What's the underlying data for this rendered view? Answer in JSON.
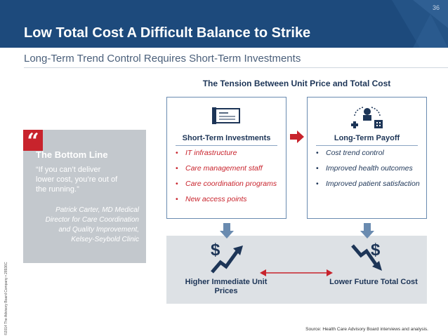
{
  "header": {
    "title": "Low Total Cost A Difficult Balance to Strike",
    "slide_number": "36"
  },
  "subtitle": "Long-Term Trend Control Requires Short-Term Investments",
  "side_copyright": "©2014 The Advisory Board Company • 28936C",
  "quote": {
    "mark": "“",
    "heading": "The Bottom Line",
    "text": "“If you can’t deliver lower cost, you’re out of the running.”",
    "attribution": "Patrick Carter, MD Medical Director for Care Coordination and Quality Improvement, Kelsey-Seybold Clinic"
  },
  "tension_title": "The Tension Between Unit Price and Total Cost",
  "short_term": {
    "heading": "Short-Term Investments",
    "icon": "check-icon",
    "items": [
      "IT infrastructure",
      "Care management staff",
      "Care coordination programs",
      "New access points"
    ]
  },
  "long_term": {
    "heading": "Long-Term Payoff",
    "icon": "care-network-icon",
    "items": [
      "Cost trend control",
      "Improved health outcomes",
      "Improved patient satisfaction"
    ]
  },
  "outcomes": {
    "left_label": "Higher Immediate Unit Prices",
    "right_label": "Lower Future Total Cost",
    "left_icon": "dollar-rising-icon",
    "right_icon": "dollar-falling-icon"
  },
  "source": "Source: Health Care Advisory Board interviews and analysis.",
  "colors": {
    "header": "#1d4a7c",
    "accent_red": "#c8232c",
    "navy": "#1d3557",
    "box_border": "#6a8bb0",
    "band": "#dde1e5",
    "quote_bg": "#c3c8cd"
  }
}
